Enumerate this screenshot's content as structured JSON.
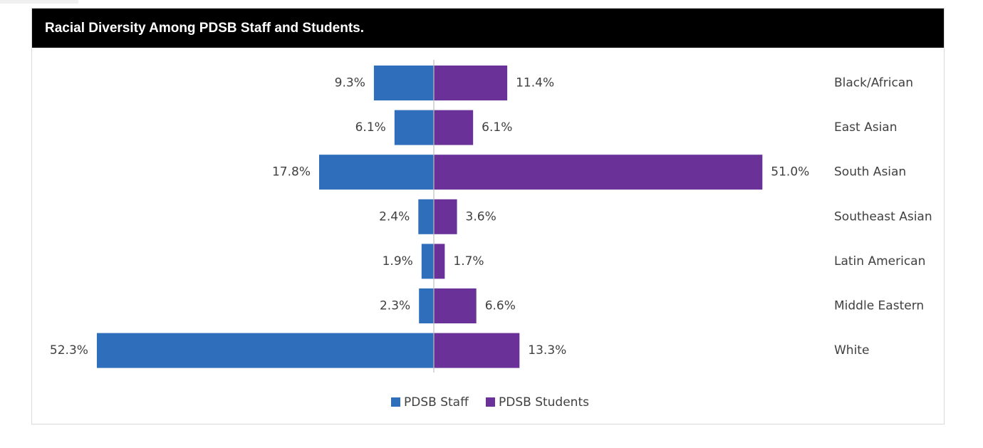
{
  "header": {
    "title": "Racial Diversity Among PDSB Staff and Students."
  },
  "colors": {
    "staff": "#2E6EBB",
    "students": "#6A3298",
    "axis": "#bfbfbf",
    "text": "#404040"
  },
  "chart_data": {
    "type": "bar",
    "orientation": "horizontal-diverging",
    "title": "Racial Diversity Among PDSB Staff and Students.",
    "categories": [
      "Black/African",
      "East Asian",
      "South Asian",
      "Southeast Asian",
      "Latin American",
      "Middle Eastern",
      "White"
    ],
    "series": [
      {
        "name": "PDSB Staff",
        "values": [
          9.3,
          6.1,
          17.8,
          2.4,
          1.9,
          2.3,
          52.3
        ],
        "labels": [
          "9.3%",
          "6.1%",
          "17.8%",
          "2.4%",
          "1.9%",
          "2.3%",
          "52.3%"
        ],
        "side": "left"
      },
      {
        "name": "PDSB Students",
        "values": [
          11.4,
          6.1,
          51.0,
          3.6,
          1.7,
          6.6,
          13.3
        ],
        "labels": [
          "11.4%",
          "6.1%",
          "51.0%",
          "3.6%",
          "1.7%",
          "6.6%",
          "13.3%"
        ],
        "side": "right"
      }
    ],
    "unit": "%",
    "grid": false,
    "legend_position": "bottom"
  }
}
